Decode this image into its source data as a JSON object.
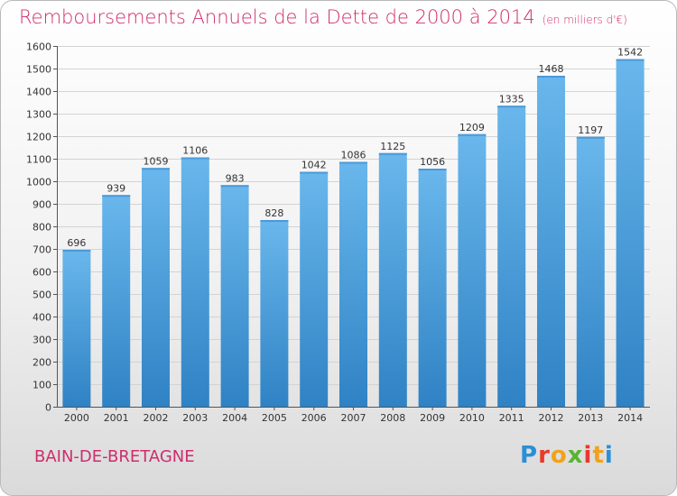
{
  "header": {
    "title": "Remboursements Annuels de la Dette de 2000 à 2014",
    "unit": "(en milliers d'€)"
  },
  "footer": {
    "commune": "BAIN-DE-BRETAGNE",
    "brand": "Proxiti"
  },
  "colors": {
    "title": "#cf2d6c",
    "bar_light": "#69b7ec",
    "bar_dark": "#2f82c4",
    "grid": "#d3d3d3"
  },
  "chart_data": {
    "type": "bar",
    "title": "Remboursements Annuels de la Dette de 2000 à 2014",
    "subtitle": "(en milliers d'€)",
    "xlabel": "",
    "ylabel": "",
    "ylim": [
      0,
      1600
    ],
    "yticks": [
      0,
      100,
      200,
      300,
      400,
      500,
      600,
      700,
      800,
      900,
      1000,
      1100,
      1200,
      1300,
      1400,
      1500,
      1600
    ],
    "grid": true,
    "categories": [
      "2000",
      "2001",
      "2002",
      "2003",
      "2004",
      "2005",
      "2006",
      "2007",
      "2008",
      "2009",
      "2010",
      "2011",
      "2012",
      "2013",
      "2014"
    ],
    "values": [
      696,
      939,
      1059,
      1106,
      983,
      828,
      1042,
      1086,
      1125,
      1056,
      1209,
      1335,
      1468,
      1197,
      1542
    ]
  }
}
